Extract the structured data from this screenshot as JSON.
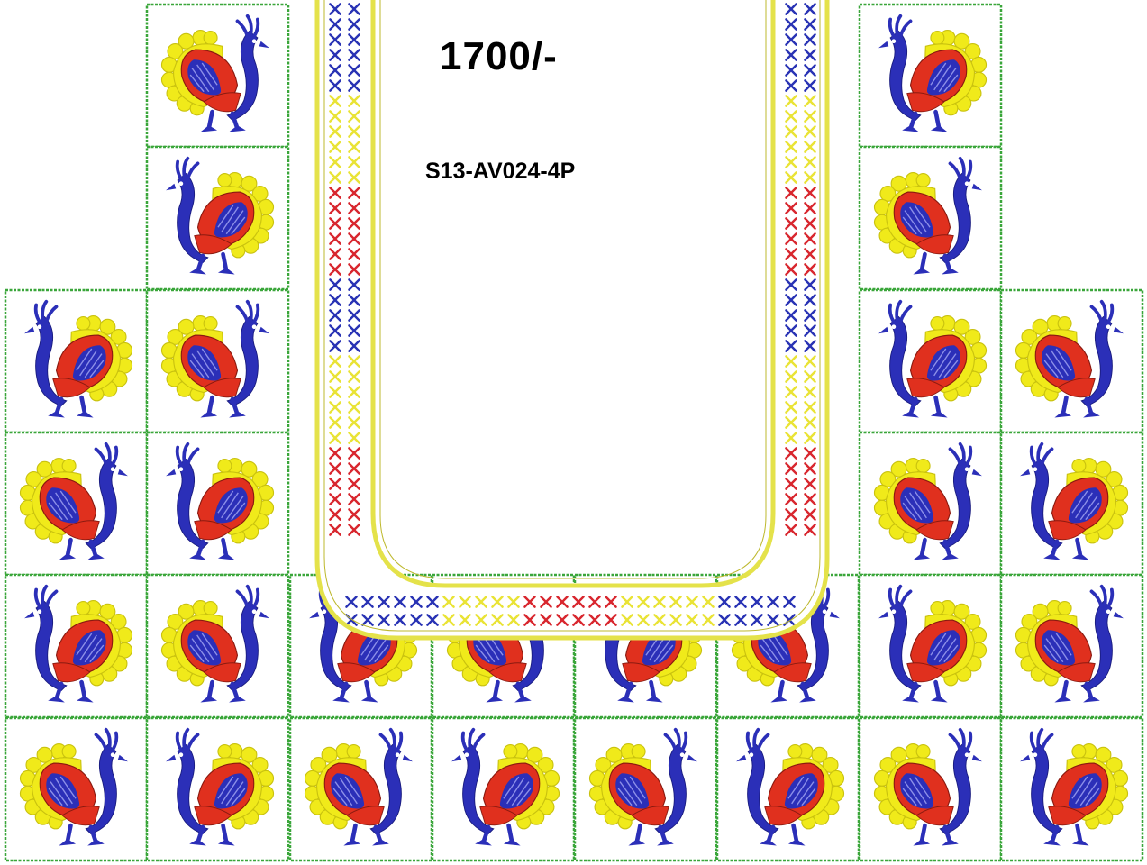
{
  "price_label": "1700/-",
  "design_code": "S13-AV024-4P",
  "colors": {
    "tile_border": "#3aa63a",
    "bird_blue": "#2b2fb8",
    "bird_red": "#e0301e",
    "bird_yellow": "#f0ea1a",
    "neck_red": "#d8262e",
    "neck_blue": "#2832b4",
    "neck_yellow": "#e9e335",
    "neck_outline": "#e4e24a"
  },
  "motif_icon": "peacock-embroidery-icon",
  "border_icon": "cross-stitch-icon"
}
